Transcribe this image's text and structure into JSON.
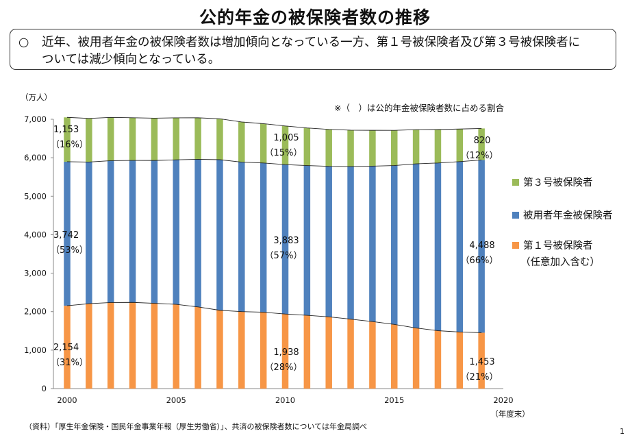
{
  "title": "公的年金の被保険者数の推移",
  "summary": {
    "bullet": "○",
    "line1": "近年、被用者年金の被保険者数は増加傾向となっている一方、第１号被保険者及び第３号被保険者に",
    "line2": "ついては減少傾向となっている。"
  },
  "page_number": "1",
  "chart_data": {
    "type": "bar",
    "stacked": true,
    "y_unit": "（万人）",
    "x_unit": "（年度末）",
    "note": "※（　）は公的年金被保険者数に占める割合",
    "source": "（資料）「厚生年金保険・国民年金事業年報（厚生労働省）」、共済の被保険者数については年金局調べ",
    "ylim": [
      0,
      7000
    ],
    "yticks": [
      "0",
      "1,000",
      "2,000",
      "3,000",
      "4,000",
      "5,000",
      "6,000",
      "7,000"
    ],
    "xlim": [
      2000,
      2020
    ],
    "xticks": [
      "2000",
      "2005",
      "2010",
      "2015",
      "2020"
    ],
    "categories": [
      2000,
      2001,
      2002,
      2003,
      2004,
      2005,
      2006,
      2007,
      2008,
      2009,
      2010,
      2011,
      2012,
      2013,
      2014,
      2015,
      2016,
      2017,
      2018,
      2019
    ],
    "grid": false,
    "series": [
      {
        "name": "第１号被保険者",
        "name_line2": "（任意加入含む）",
        "color": "#F79646",
        "values": [
          2154,
          2207,
          2237,
          2240,
          2217,
          2190,
          2123,
          2035,
          2001,
          1985,
          1938,
          1904,
          1864,
          1805,
          1742,
          1668,
          1575,
          1505,
          1471,
          1453
        ]
      },
      {
        "name": "被用者年金被保険者",
        "color": "#4F81BD",
        "values": [
          3742,
          3681,
          3686,
          3690,
          3712,
          3755,
          3836,
          3914,
          3885,
          3879,
          3883,
          3892,
          3912,
          3967,
          4039,
          4129,
          4266,
          4358,
          4428,
          4488
        ]
      },
      {
        "name": "第３号被保険者",
        "color": "#9BBB59",
        "values": [
          1153,
          1133,
          1124,
          1109,
          1099,
          1092,
          1079,
          1063,
          1044,
          1021,
          1005,
          978,
          960,
          945,
          932,
          915,
          889,
          870,
          847,
          820
        ]
      }
    ],
    "annotations": [
      {
        "category": 2000,
        "series": "第３号被保険者",
        "value": "1,153",
        "pct": "（16%）"
      },
      {
        "category": 2000,
        "series": "被用者年金被保険者",
        "value": "3,742",
        "pct": "（53%）"
      },
      {
        "category": 2000,
        "series": "第１号被保険者",
        "value": "2,154",
        "pct": "（31%）"
      },
      {
        "category": 2010,
        "series": "第３号被保険者",
        "value": "1,005",
        "pct": "（15%）"
      },
      {
        "category": 2010,
        "series": "被用者年金被保険者",
        "value": "3,883",
        "pct": "（57%）"
      },
      {
        "category": 2010,
        "series": "第１号被保険者",
        "value": "1,938",
        "pct": "（28%）"
      },
      {
        "category": 2019,
        "series": "第３号被保険者",
        "value": "820",
        "pct": "（12%）"
      },
      {
        "category": 2019,
        "series": "被用者年金被保険者",
        "value": "4,488",
        "pct": "（66%）"
      },
      {
        "category": 2019,
        "series": "第１号被保険者",
        "value": "1,453",
        "pct": "（21%）"
      }
    ]
  }
}
